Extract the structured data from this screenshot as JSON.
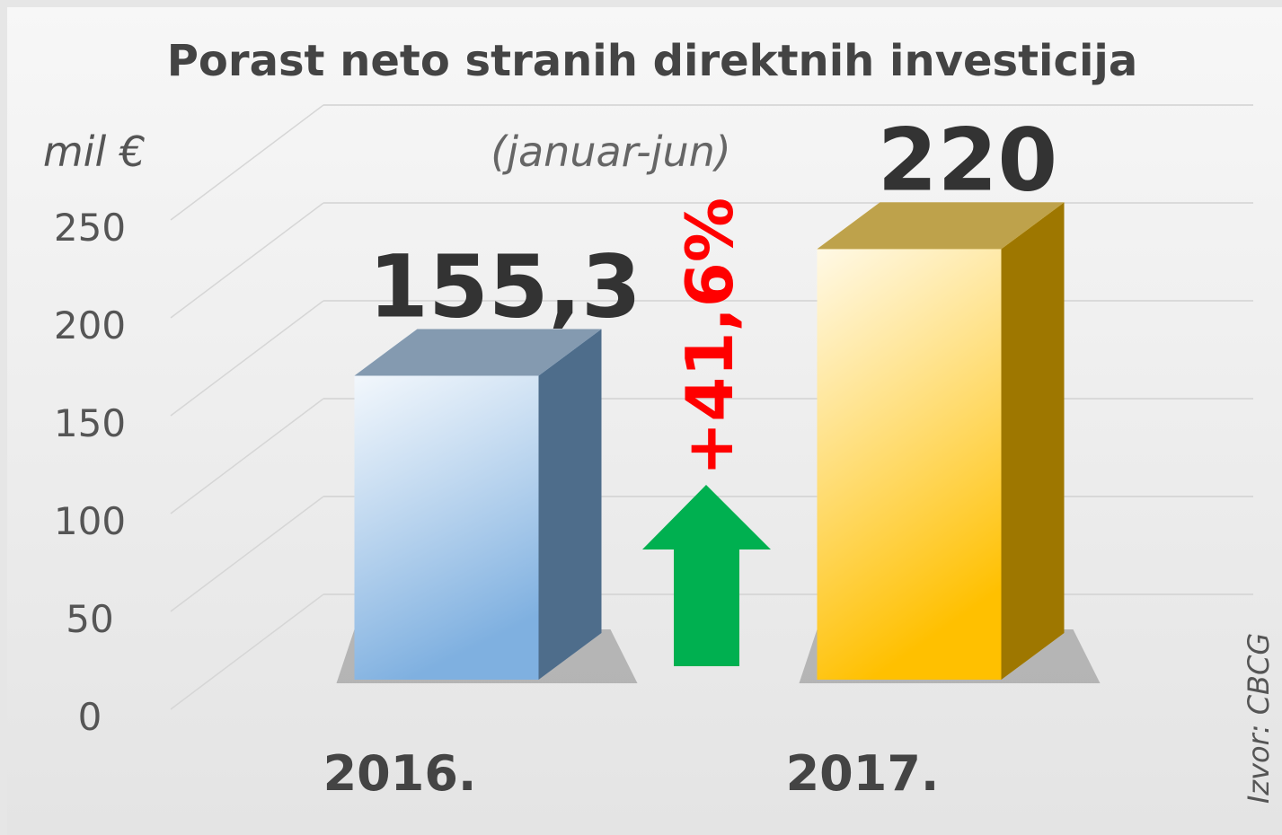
{
  "chart_data": {
    "type": "bar3d",
    "title": "Porast neto stranih direktnih investicija",
    "subtitle": "(januar-jun)",
    "y_label": "mil €",
    "annotation": "+41,6%",
    "source": "Izvor: CBCG",
    "categories": [
      "2016.",
      "2017."
    ],
    "values": [
      155.3,
      220
    ],
    "value_labels": [
      "155,3",
      "220"
    ],
    "colors": [
      "#7fb0e0",
      "#ffc000"
    ],
    "ylim": [
      0,
      250
    ],
    "yticks": [
      0,
      50,
      100,
      150,
      200,
      250
    ],
    "grid": true
  }
}
